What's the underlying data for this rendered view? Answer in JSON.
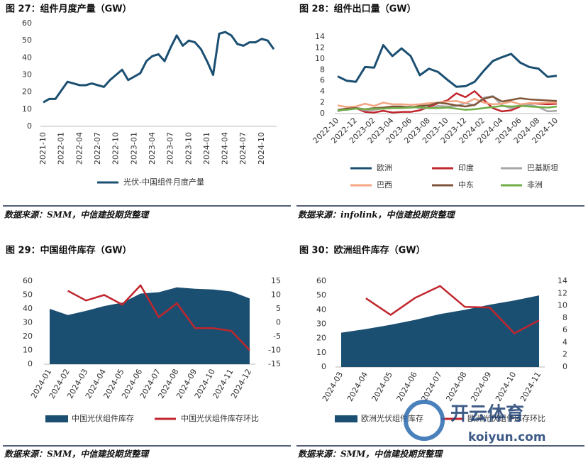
{
  "chart_data": [
    {
      "type": "line",
      "title": "图 27：组件月度产量（GW）",
      "source": "数据来源：SMM，中信建投期货整理",
      "categories": [
        "2021-10",
        null,
        null,
        "2022-01",
        null,
        null,
        "2022-04",
        null,
        null,
        "2022-07",
        null,
        null,
        "2022-10",
        null,
        null,
        "2023-01",
        null,
        null,
        "2023-04",
        null,
        null,
        "2023-07",
        null,
        null,
        "2023-10",
        null,
        null,
        "2024-01",
        null,
        null,
        "2024-04",
        null,
        null,
        "2024-07",
        null,
        null,
        "2024-10",
        null,
        null
      ],
      "series": [
        {
          "name": "光伏-中国组件月度产量",
          "color": "#1b4f72",
          "kind": "line",
          "values": [
            14,
            16,
            16,
            21,
            26,
            25,
            24,
            24,
            25,
            24,
            23,
            27,
            30,
            33,
            27,
            29,
            31,
            38,
            41,
            42,
            38,
            46,
            53,
            47,
            50,
            49,
            45,
            38,
            30,
            54,
            55,
            53,
            48,
            47,
            49,
            49,
            51,
            50,
            45
          ]
        }
      ],
      "ylim": [
        0,
        60
      ],
      "yticks": [
        0,
        10,
        20,
        30,
        40,
        50,
        60
      ],
      "grid": false
    },
    {
      "type": "line",
      "title": "图 28：组件出口量（GW）",
      "source": "数据来源：infolink，中信建投期货整理",
      "categories": [
        "2022-10",
        null,
        "2022-12",
        null,
        "2023-02",
        null,
        "2023-04",
        null,
        "2023-06",
        null,
        "2023-08",
        null,
        "2023-10",
        null,
        "2023-12",
        null,
        "2024-02",
        null,
        "2024-04",
        null,
        "2024-06",
        null,
        "2024-08",
        null,
        "2024-10"
      ],
      "series": [
        {
          "name": "欧洲",
          "color": "#1b4f72",
          "kind": "line",
          "values": [
            6.8,
            6.0,
            5.8,
            8.5,
            8.4,
            12.5,
            10.5,
            11.9,
            10.5,
            7.0,
            8.2,
            7.6,
            6.2,
            4.9,
            5.0,
            5.8,
            7.8,
            9.6,
            10.3,
            10.9,
            9.3,
            8.5,
            8.2,
            6.7,
            6.9
          ]
        },
        {
          "name": "印度",
          "color": "#c0262d",
          "kind": "line",
          "values": [
            0.5,
            0.8,
            1.0,
            0.3,
            0.2,
            0.5,
            0.2,
            0.3,
            0.3,
            0.6,
            1.2,
            1.9,
            2.4,
            3.7,
            3.0,
            4.1,
            2.5,
            1.0,
            0.4,
            0.6,
            1.3,
            1.9,
            1.8,
            1.7,
            1.8
          ]
        },
        {
          "name": "巴基斯坦",
          "color": "#a6a6a6",
          "kind": "line",
          "values": [
            0.4,
            0.9,
            1.0,
            0.6,
            0.7,
            0.9,
            1.0,
            1.1,
            1.3,
            1.0,
            1.0,
            1.4,
            1.3,
            1.4,
            1.9,
            1.5,
            2.9,
            3.2,
            1.5,
            1.0,
            1.5,
            1.6,
            1.2,
            0.4,
            0.5
          ]
        },
        {
          "name": "巴西",
          "color": "#f4a582",
          "kind": "line",
          "values": [
            1.5,
            1.2,
            1.3,
            1.8,
            1.4,
            2.0,
            1.7,
            1.7,
            1.6,
            1.7,
            1.9,
            2.0,
            2.2,
            2.3,
            1.9,
            2.7,
            2.0,
            1.7,
            1.8,
            2.2,
            1.7,
            1.9,
            1.9,
            2.0,
            2.0
          ]
        },
        {
          "name": "中东",
          "color": "#7f5539",
          "kind": "line",
          "values": [
            0.7,
            0.9,
            1.0,
            0.8,
            1.0,
            1.1,
            1.3,
            1.3,
            1.1,
            1.4,
            1.5,
            2.0,
            1.8,
            1.5,
            1.3,
            1.6,
            2.7,
            3.1,
            2.2,
            2.5,
            2.8,
            2.6,
            2.5,
            2.4,
            2.3
          ]
        },
        {
          "name": "非洲",
          "color": "#70ad47",
          "kind": "line",
          "values": [
            0.6,
            0.7,
            0.9,
            0.8,
            0.9,
            0.9,
            1.0,
            1.0,
            1.1,
            1.2,
            1.0,
            1.0,
            1.1,
            0.9,
            0.7,
            0.8,
            1.0,
            1.2,
            1.4,
            1.3,
            1.4,
            1.3,
            1.2,
            1.1,
            1.3
          ]
        }
      ],
      "ylim": [
        0,
        14
      ],
      "yticks": [
        0,
        2,
        4,
        6,
        8,
        10,
        12,
        14
      ],
      "grid": false
    },
    {
      "type": "combo",
      "title": "图 29：中国组件库存（GW）",
      "source": "数据来源：SMM，中信建投期货整理",
      "categories": [
        "2024-01",
        "2024-02",
        "2024-03",
        "2024-04",
        "2024-05",
        "2024-06",
        "2024-07",
        "2024-08",
        "2024-09",
        "2024-10",
        "2024-11",
        "2024-12"
      ],
      "series": [
        {
          "name": "中国光伏组件库存",
          "color": "#1b4f72",
          "kind": "area",
          "values": [
            40,
            35.5,
            38.5,
            42,
            44.5,
            51,
            52,
            55.5,
            54.5,
            54,
            52.5,
            47.5
          ]
        },
        {
          "name": "中国光伏组件库存环比",
          "color": "#c0262d",
          "kind": "line",
          "axis": "y2",
          "values": [
            null,
            11.5,
            8,
            10,
            6.5,
            13.5,
            2,
            7,
            -2,
            -2,
            -3,
            -10
          ]
        }
      ],
      "ylim": [
        0,
        60
      ],
      "yticks": [
        0,
        10,
        20,
        30,
        40,
        50,
        60
      ],
      "y2lim": [
        -15,
        15
      ],
      "y2ticks": [
        -15,
        -10,
        -5,
        0,
        5,
        10,
        15
      ],
      "grid": false
    },
    {
      "type": "combo",
      "title": "图 30：欧洲组件库存（GW）",
      "source": "数据来源：SMM，中信建投期货整理",
      "categories": [
        "2024-03",
        "2024-04",
        "2024-05",
        "2024-06",
        "2024-07",
        "2024-08",
        "2024-09",
        "2024-10",
        "2024-11"
      ],
      "series": [
        {
          "name": "欧洲光伏组件库存",
          "color": "#1b4f72",
          "kind": "area",
          "values": [
            24,
            26.5,
            29.5,
            33,
            37,
            40,
            43.5,
            46.5,
            50
          ]
        },
        {
          "name": "欧洲光伏组件库存环比",
          "color": "#c0262d",
          "kind": "line",
          "axis": "y2",
          "values": [
            null,
            11.2,
            8.5,
            11.3,
            13.2,
            9.8,
            9.7,
            5.5,
            7.6
          ]
        }
      ],
      "ylim": [
        0,
        60
      ],
      "yticks": [
        0,
        10,
        20,
        30,
        40,
        50,
        60
      ],
      "y2lim": [
        0,
        14
      ],
      "y2ticks": [
        0,
        2,
        4,
        6,
        8,
        10,
        12,
        14
      ],
      "grid": false
    }
  ],
  "watermark": {
    "brand": "开云体育",
    "site": "koiyun.com"
  }
}
